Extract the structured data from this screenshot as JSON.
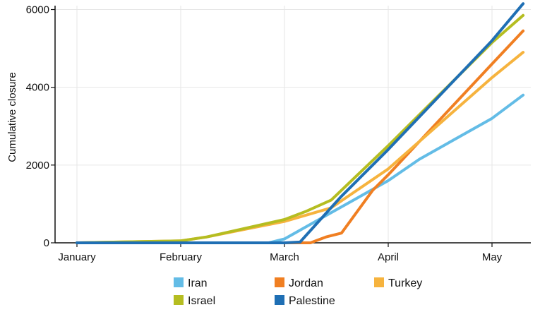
{
  "chart_data": {
    "type": "line",
    "ylabel": "Cumulative closure",
    "xlabel": "",
    "title": "",
    "x_ticks": [
      "January",
      "February",
      "March",
      "April",
      "May"
    ],
    "y_ticks": [
      0,
      2000,
      4000,
      6000
    ],
    "xlim": [
      0,
      4.35
    ],
    "ylim": [
      0,
      6100
    ],
    "grid": true,
    "legend_position": "bottom",
    "series": [
      {
        "name": "Iran",
        "color": "#63BCE6",
        "x": [
          0,
          1,
          1.85,
          2,
          2.1,
          2.4,
          3,
          3.3,
          4,
          4.3
        ],
        "y": [
          0,
          0,
          0,
          100,
          250,
          700,
          1600,
          2150,
          3200,
          3800
        ]
      },
      {
        "name": "Jordan",
        "color": "#F07F22",
        "x": [
          0,
          1,
          2,
          2.25,
          2.4,
          2.55,
          2.85,
          3,
          4,
          4.3
        ],
        "y": [
          0,
          0,
          0,
          0,
          150,
          250,
          1350,
          1750,
          4600,
          5450
        ]
      },
      {
        "name": "Turkey",
        "color": "#F6B33E",
        "x": [
          0,
          1,
          1.25,
          2,
          2.45,
          3,
          4,
          4.3
        ],
        "y": [
          0,
          50,
          150,
          550,
          900,
          1900,
          4250,
          4900
        ]
      },
      {
        "name": "Israel",
        "color": "#B5BD21",
        "x": [
          0,
          1,
          1.25,
          2,
          2.2,
          2.45,
          3,
          4,
          4.3
        ],
        "y": [
          0,
          50,
          150,
          600,
          800,
          1100,
          2500,
          5150,
          5850
        ]
      },
      {
        "name": "Palestine",
        "color": "#1F6FB4",
        "x": [
          0,
          1,
          2,
          2.15,
          2.55,
          3,
          4,
          4.3
        ],
        "y": [
          0,
          0,
          0,
          20,
          1200,
          2400,
          5200,
          6150
        ]
      }
    ]
  }
}
